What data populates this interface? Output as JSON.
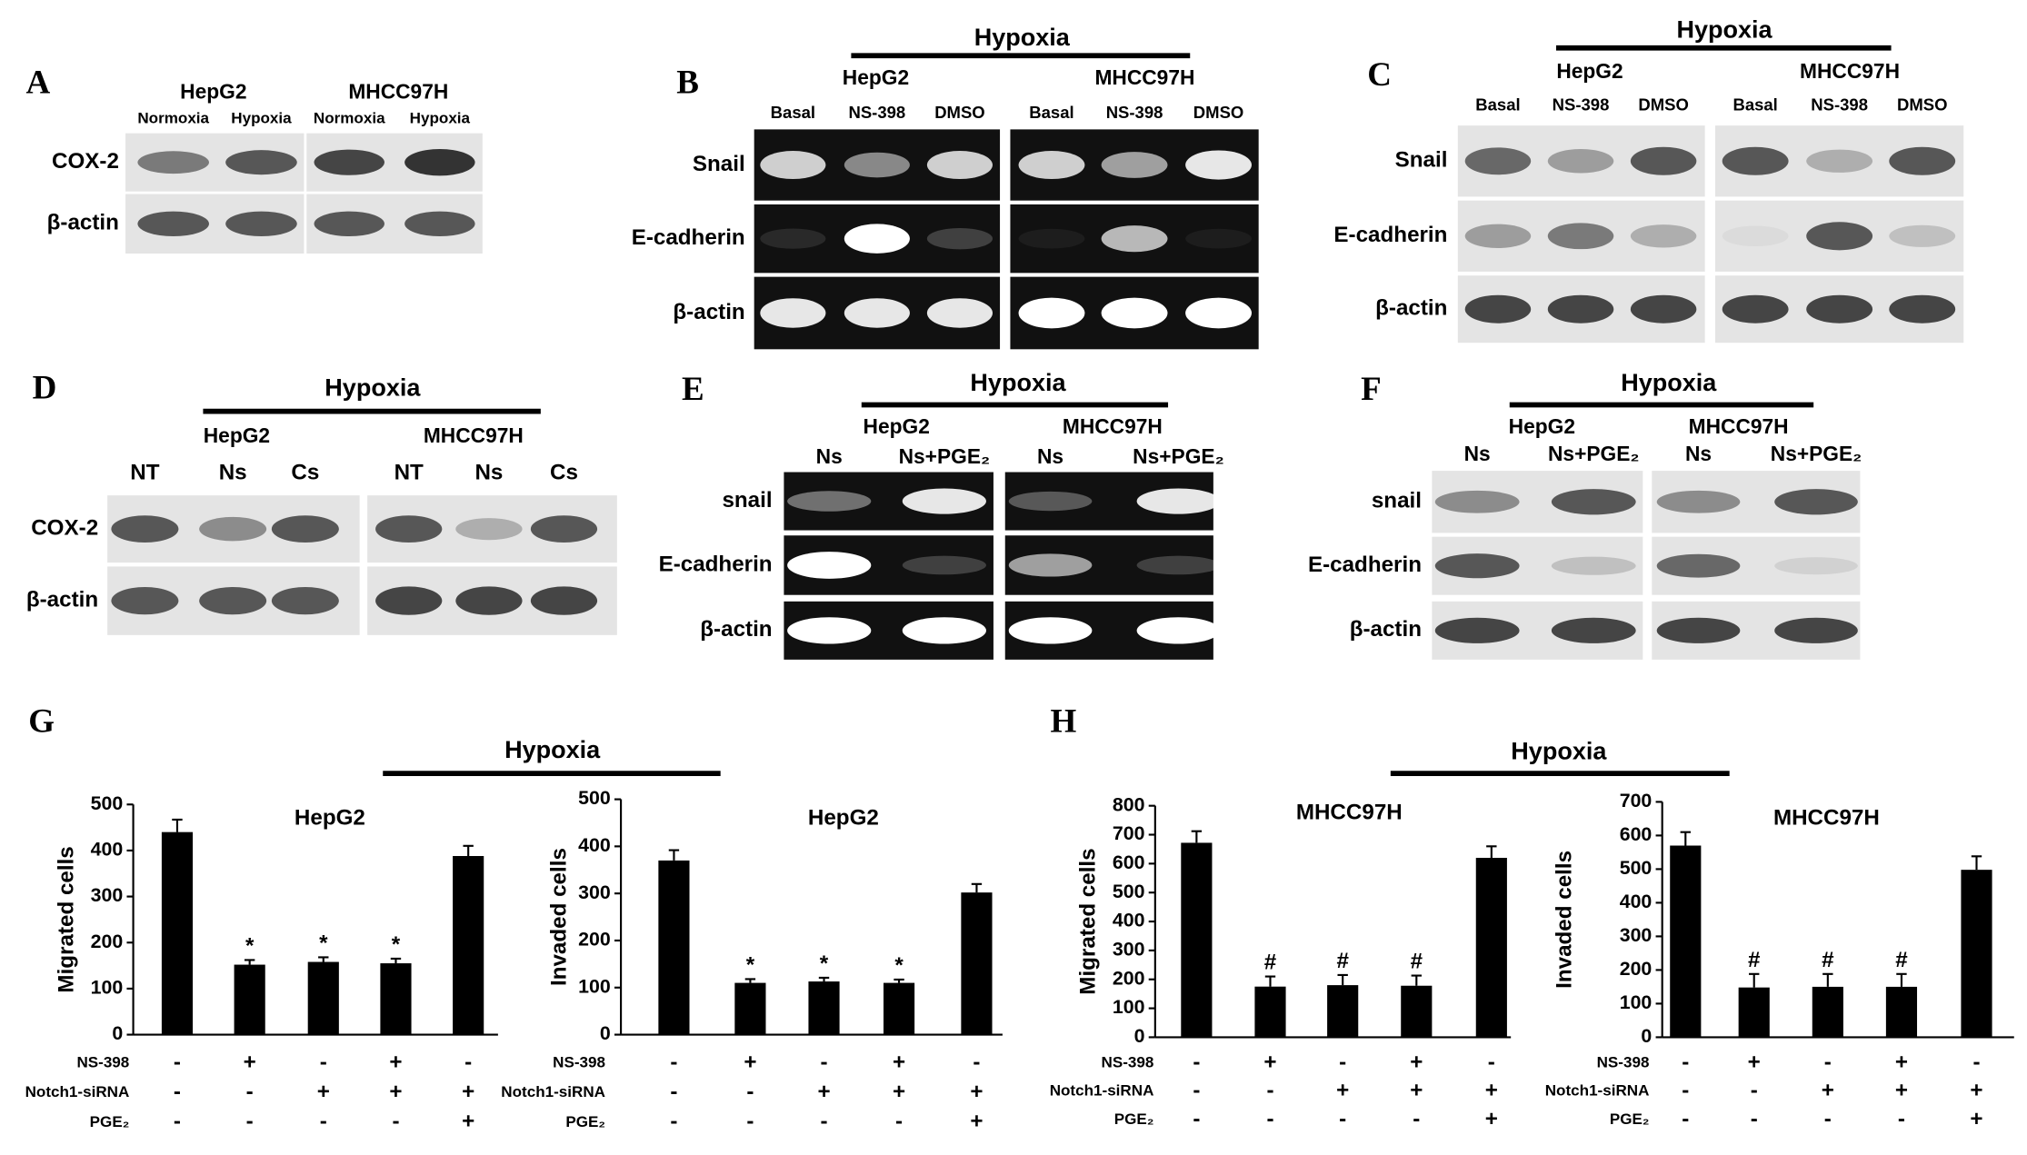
{
  "blots": [
    {
      "letter": "A",
      "groups": [
        "HepG2",
        "MHCC97H"
      ],
      "lanes": [
        "Normoxia",
        "Hypoxia",
        "Normoxia",
        "Hypoxia"
      ],
      "rows": [
        "COX-2",
        "β-actin"
      ]
    },
    {
      "letter": "B",
      "title": "Hypoxia",
      "groups": [
        "HepG2",
        "MHCC97H"
      ],
      "lanes": [
        "Basal",
        "NS-398",
        "DMSO",
        "Basal",
        "NS-398",
        "DMSO"
      ],
      "rows": [
        "Snail",
        "E-cadherin",
        "β-actin"
      ]
    },
    {
      "letter": "C",
      "title": "Hypoxia",
      "groups": [
        "HepG2",
        "MHCC97H"
      ],
      "lanes": [
        "Basal",
        "NS-398",
        "DMSO",
        "Basal",
        "NS-398",
        "DMSO"
      ],
      "rows": [
        "Snail",
        "E-cadherin",
        "β-actin"
      ]
    },
    {
      "letter": "D",
      "title": "Hypoxia",
      "groups": [
        "HepG2",
        "MHCC97H"
      ],
      "lanes": [
        "NT",
        "Ns",
        "Cs",
        "NT",
        "Ns",
        "Cs"
      ],
      "rows": [
        "COX-2",
        "β-actin"
      ]
    },
    {
      "letter": "E",
      "title": "Hypoxia",
      "groups": [
        "HepG2",
        "MHCC97H"
      ],
      "lanes": [
        "Ns",
        "Ns+PGE₂",
        "Ns",
        "Ns+PGE₂"
      ],
      "rows": [
        "snail",
        "E-cadherin",
        "β-actin"
      ]
    },
    {
      "letter": "F",
      "title": "Hypoxia",
      "groups": [
        "HepG2",
        "MHCC97H"
      ],
      "lanes": [
        "Ns",
        "Ns+PGE₂",
        "Ns",
        "Ns+PGE₂"
      ],
      "rows": [
        "snail",
        "E-cadherin",
        "β-actin"
      ]
    }
  ],
  "chart_panels": [
    {
      "letter": "G",
      "title": "Hypoxia"
    },
    {
      "letter": "H",
      "title": "Hypoxia"
    }
  ],
  "chart_data": [
    {
      "type": "bar",
      "title": "HepG2",
      "y_label": "Migrated cells",
      "color": "#000000",
      "values": [
        440,
        152,
        158,
        155,
        388
      ],
      "errors": [
        27,
        10,
        10,
        10,
        22
      ],
      "significance": [
        null,
        "*",
        "*",
        "*",
        null
      ],
      "ylim": [
        0,
        500
      ],
      "yticks": [
        0,
        100,
        200,
        300,
        400,
        500
      ],
      "conditions": [
        {
          "name": "NS-398",
          "signs": [
            "-",
            "+",
            "-",
            "+",
            "-"
          ]
        },
        {
          "name": "Notch1-siRNA",
          "signs": [
            "-",
            "-",
            "+",
            "+",
            "+"
          ]
        },
        {
          "name": "PGE₂",
          "signs": [
            "-",
            "-",
            "-",
            "-",
            "+"
          ]
        }
      ]
    },
    {
      "type": "bar",
      "title": "HepG2",
      "y_label": "Invaded cells",
      "color": "#000000",
      "values": [
        370,
        110,
        113,
        110,
        302
      ],
      "errors": [
        22,
        8,
        8,
        7,
        18
      ],
      "significance": [
        null,
        "*",
        "*",
        "*",
        null
      ],
      "ylim": [
        0,
        500
      ],
      "yticks": [
        0,
        100,
        200,
        300,
        400,
        500
      ],
      "conditions": [
        {
          "name": "NS-398",
          "signs": [
            "-",
            "+",
            "-",
            "+",
            "-"
          ]
        },
        {
          "name": "Notch1-siRNA",
          "signs": [
            "-",
            "-",
            "+",
            "+",
            "+"
          ]
        },
        {
          "name": "PGE₂",
          "signs": [
            "-",
            "-",
            "-",
            "-",
            "+"
          ]
        }
      ]
    },
    {
      "type": "bar",
      "title": "MHCC97H",
      "y_label": "Migrated cells",
      "color": "#000000",
      "values": [
        672,
        175,
        180,
        178,
        620
      ],
      "errors": [
        40,
        35,
        35,
        35,
        40
      ],
      "significance": [
        null,
        "#",
        "#",
        "#",
        null
      ],
      "ylim": [
        0,
        800
      ],
      "yticks": [
        0,
        100,
        200,
        300,
        400,
        500,
        600,
        700,
        800
      ],
      "conditions": [
        {
          "name": "NS-398",
          "signs": [
            "-",
            "+",
            "-",
            "+",
            "-"
          ]
        },
        {
          "name": "Notch1-siRNA",
          "signs": [
            "-",
            "-",
            "+",
            "+",
            "+"
          ]
        },
        {
          "name": "PGE₂",
          "signs": [
            "-",
            "-",
            "-",
            "-",
            "+"
          ]
        }
      ]
    },
    {
      "type": "bar",
      "title": "MHCC97H",
      "y_label": "Invaded cells",
      "color": "#000000",
      "values": [
        570,
        148,
        150,
        150,
        498
      ],
      "errors": [
        40,
        40,
        38,
        38,
        40
      ],
      "significance": [
        null,
        "#",
        "#",
        "#",
        null
      ],
      "ylim": [
        0,
        700
      ],
      "yticks": [
        0,
        100,
        200,
        300,
        400,
        500,
        600,
        700
      ],
      "conditions": [
        {
          "name": "NS-398",
          "signs": [
            "-",
            "+",
            "-",
            "+",
            "-"
          ]
        },
        {
          "name": "Notch1-siRNA",
          "signs": [
            "-",
            "-",
            "+",
            "+",
            "+"
          ]
        },
        {
          "name": "PGE₂",
          "signs": [
            "-",
            "-",
            "-",
            "-",
            "+"
          ]
        }
      ]
    }
  ]
}
